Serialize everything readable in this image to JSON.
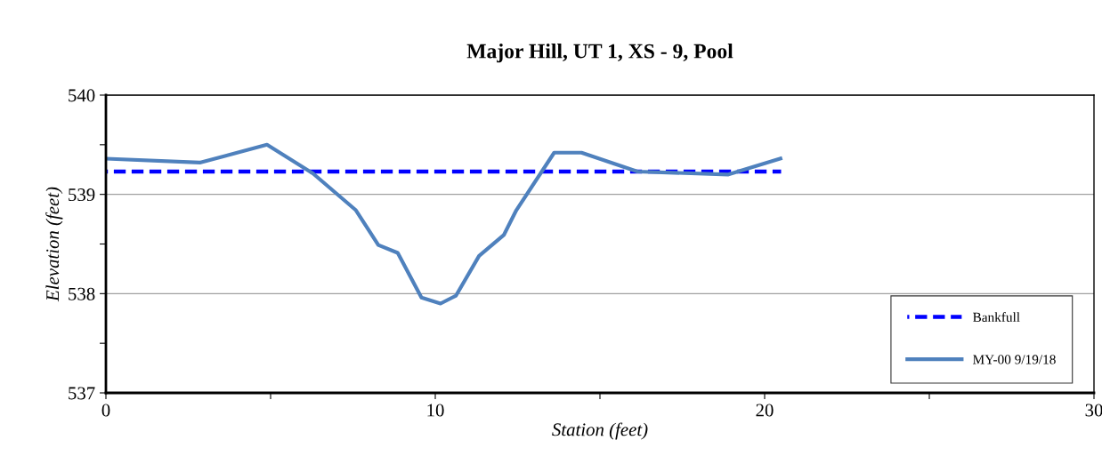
{
  "chart_data": {
    "type": "line",
    "title": "Major Hill, UT 1, XS - 9, Pool",
    "xlabel": "Station (feet)",
    "ylabel": "Elevation (feet)",
    "series": [
      {
        "name": "Bankfull",
        "color": "#0000ff",
        "line_style": "dashed",
        "x": [
          0,
          20.5
        ],
        "values": [
          539.23,
          539.23
        ]
      },
      {
        "name": "MY-00 9/19/18",
        "color": "#4f81bd",
        "line_style": "solid",
        "x": [
          0,
          2.85,
          4.89,
          6.29,
          7.59,
          8.27,
          8.86,
          9.58,
          10.16,
          10.63,
          11.33,
          12.08,
          12.46,
          13.61,
          14.44,
          16.14,
          18.9,
          20.48
        ],
        "values": [
          539.36,
          539.32,
          539.5,
          539.21,
          538.84,
          538.49,
          538.41,
          537.96,
          537.9,
          537.98,
          538.38,
          538.59,
          538.84,
          539.42,
          539.42,
          539.23,
          539.2,
          539.36
        ]
      }
    ],
    "xlim": [
      0,
      30
    ],
    "xticks": [
      0,
      {
        "value": 5,
        "label": null
      },
      10,
      {
        "value": 15,
        "label": null
      },
      20,
      {
        "value": 25,
        "label": null
      },
      30
    ],
    "ylim": [
      537,
      540
    ],
    "yticks": [
      537,
      {
        "value": 537.5,
        "label": null
      },
      538,
      {
        "value": 538.5,
        "label": null
      },
      539,
      {
        "value": 539.5,
        "label": null
      },
      540
    ],
    "grid": "y",
    "legend": "bottom right",
    "marker": "none"
  }
}
